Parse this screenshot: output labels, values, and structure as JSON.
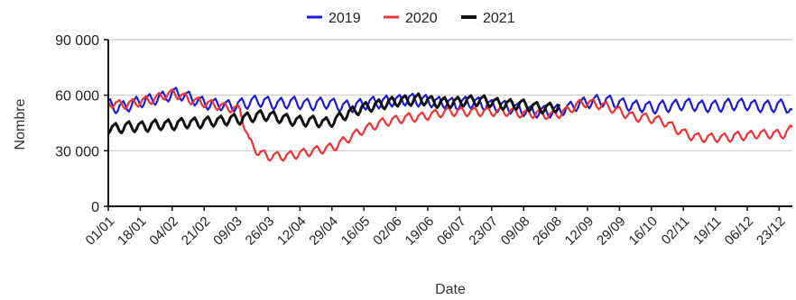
{
  "chart_data": {
    "type": "line",
    "title": "",
    "xlabel": "Date",
    "ylabel": "Nombre",
    "ylim": [
      0,
      90000
    ],
    "yticks": [
      0,
      30000,
      60000,
      90000
    ],
    "ytick_labels": [
      "0",
      "30 000",
      "60 000",
      "90 000"
    ],
    "x_tick_labels": [
      "01/01",
      "18/01",
      "04/02",
      "21/02",
      "09/03",
      "26/03",
      "12/04",
      "29/04",
      "16/05",
      "02/06",
      "19/06",
      "06/07",
      "23/07",
      "09/08",
      "26/08",
      "12/09",
      "29/09",
      "16/10",
      "02/11",
      "19/11",
      "06/12",
      "23/12"
    ],
    "grid": "horizontal",
    "legend": "top",
    "note_x": "x values are day-of-year (1 = 01/01), tick labels every 17 days",
    "series": [
      {
        "name": "2019",
        "color": "#1a1adb",
        "x": [
          1,
          6,
          11,
          16,
          21,
          26,
          31,
          36,
          41,
          46,
          51,
          56,
          61,
          66,
          71,
          76,
          81,
          86,
          91,
          96,
          101,
          106,
          111,
          116,
          121,
          126,
          131,
          136,
          141,
          146,
          151,
          156,
          161,
          166,
          171,
          176,
          181,
          186,
          191,
          196,
          201,
          206,
          211,
          216,
          221,
          226,
          231,
          236,
          241,
          246,
          251,
          256,
          261,
          266,
          271,
          276,
          281,
          286,
          291,
          296,
          301,
          306,
          311,
          316,
          321,
          326,
          331,
          336,
          341,
          346,
          351,
          356,
          361,
          365
        ],
        "values": [
          55000,
          53000,
          54000,
          56000,
          57000,
          58000,
          59000,
          61000,
          60000,
          58000,
          56000,
          55000,
          55000,
          54000,
          55000,
          56000,
          57000,
          56000,
          55000,
          56000,
          56000,
          55000,
          55000,
          56000,
          55000,
          54000,
          54000,
          55000,
          56000,
          56000,
          57000,
          57000,
          58000,
          57000,
          57000,
          56000,
          56000,
          55000,
          56000,
          56000,
          55000,
          54000,
          54000,
          53000,
          52000,
          51000,
          51000,
          51000,
          52000,
          53000,
          55000,
          56000,
          57000,
          57000,
          56000,
          55000,
          54000,
          54000,
          53000,
          54000,
          54000,
          55000,
          55000,
          54000,
          54000,
          54000,
          55000,
          55000,
          55000,
          54000,
          54000,
          54000,
          55000,
          50000
        ]
      },
      {
        "name": "2020",
        "color": "#ee3333",
        "x": [
          1,
          6,
          11,
          16,
          21,
          26,
          31,
          36,
          41,
          46,
          51,
          56,
          61,
          66,
          71,
          76,
          81,
          86,
          91,
          96,
          101,
          106,
          111,
          116,
          121,
          126,
          131,
          136,
          141,
          146,
          151,
          156,
          161,
          166,
          171,
          176,
          181,
          186,
          191,
          196,
          201,
          206,
          211,
          216,
          221,
          226,
          231,
          236,
          241,
          246,
          251,
          256,
          261,
          266,
          271,
          276,
          281,
          286,
          291,
          296,
          301,
          306,
          311,
          316,
          321,
          326,
          331,
          336,
          341,
          346,
          351,
          356,
          361,
          365
        ],
        "values": [
          56000,
          55000,
          55000,
          56000,
          57000,
          58000,
          60000,
          61000,
          59000,
          57000,
          56000,
          55000,
          54000,
          53000,
          52000,
          35000,
          29000,
          27000,
          27000,
          27000,
          28000,
          29000,
          30000,
          31000,
          32000,
          35000,
          38000,
          41000,
          43000,
          45000,
          46000,
          47000,
          48000,
          48000,
          49000,
          50000,
          51000,
          51000,
          51000,
          51000,
          51000,
          51000,
          51000,
          51000,
          50000,
          50000,
          50000,
          49000,
          50000,
          52000,
          55000,
          56000,
          55000,
          54000,
          52000,
          50000,
          48000,
          48000,
          47000,
          46000,
          43000,
          40000,
          38000,
          37000,
          37000,
          37000,
          37000,
          38000,
          38000,
          39000,
          39000,
          39000,
          39000,
          42000
        ]
      },
      {
        "name": "2021",
        "color": "#111111",
        "x": [
          1,
          6,
          11,
          16,
          21,
          26,
          31,
          36,
          41,
          46,
          51,
          56,
          61,
          66,
          71,
          76,
          81,
          86,
          91,
          96,
          101,
          106,
          111,
          116,
          121,
          126,
          131,
          136,
          141,
          146,
          151,
          156,
          161,
          166,
          171,
          176,
          181,
          186,
          191,
          196,
          201,
          206,
          211,
          216,
          221,
          226,
          231,
          236,
          241
        ],
        "values": [
          42000,
          42000,
          43000,
          43000,
          43000,
          44000,
          44000,
          44000,
          45000,
          45000,
          45000,
          46000,
          46000,
          47000,
          47000,
          48000,
          49000,
          49000,
          48000,
          47000,
          46000,
          46000,
          46000,
          45000,
          46000,
          49000,
          51000,
          53000,
          54000,
          55000,
          56000,
          57000,
          57000,
          58000,
          57000,
          56000,
          56000,
          56000,
          57000,
          57000,
          57000,
          56000,
          55000,
          55000,
          55000,
          54000,
          53000,
          53000,
          54000
        ]
      }
    ]
  }
}
